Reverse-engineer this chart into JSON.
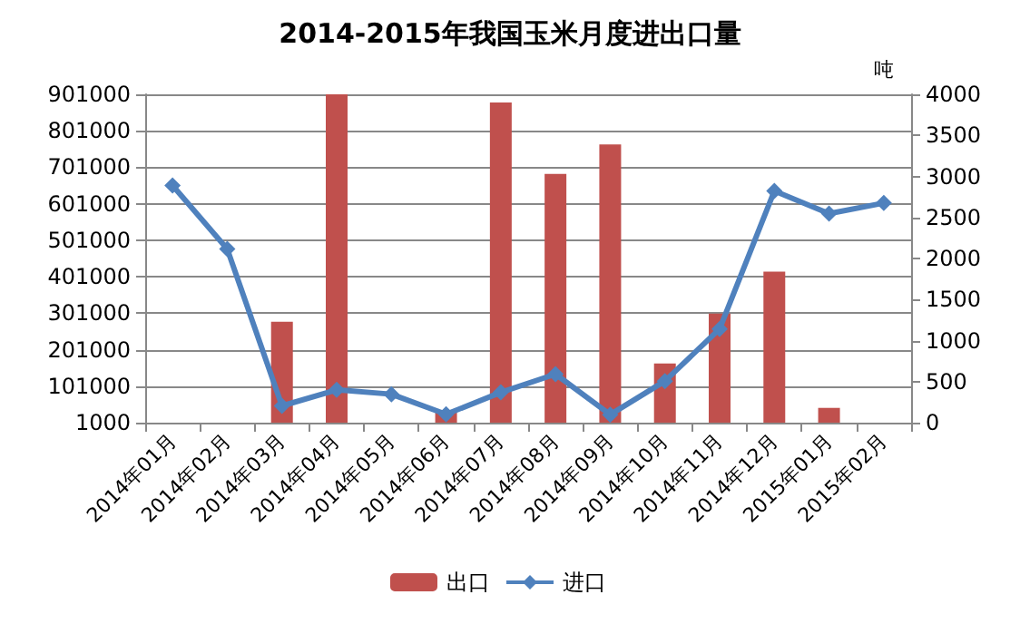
{
  "chart_data": {
    "type": "bar",
    "title": "2014-2015年我国玉米月度进出口量",
    "y2label": "吨",
    "categories": [
      "2014年01月",
      "2014年02月",
      "2014年03月",
      "2014年04月",
      "2014年05月",
      "2014年06月",
      "2014年07月",
      "2014年08月",
      "2014年09月",
      "2014年10月",
      "2014年11月",
      "2014年12月",
      "2015年01月",
      "2015年02月"
    ],
    "series": [
      {
        "name": "出口",
        "axis": "y2",
        "color": "#c0504d",
        "values": [
          null,
          null,
          1230,
          4000,
          null,
          130,
          3900,
          3030,
          3390,
          720,
          1330,
          1840,
          180,
          null
        ]
      },
      {
        "name": "进口",
        "type": "line",
        "color": "#4f81bd",
        "marker": "diamond",
        "values": [
          651000,
          477000,
          47000,
          91000,
          79000,
          24000,
          84000,
          134000,
          23000,
          115000,
          258000,
          636000,
          574000,
          603000
        ]
      }
    ],
    "ylim": [
      1000,
      901000
    ],
    "yticks": [
      1000,
      101000,
      201000,
      301000,
      401000,
      501000,
      601000,
      701000,
      801000,
      901000
    ],
    "y2lim": [
      0,
      4000
    ],
    "y2ticks": [
      0,
      500,
      1000,
      1500,
      2000,
      2500,
      3000,
      3500,
      4000
    ],
    "grid": "y",
    "legend": "bottom"
  }
}
